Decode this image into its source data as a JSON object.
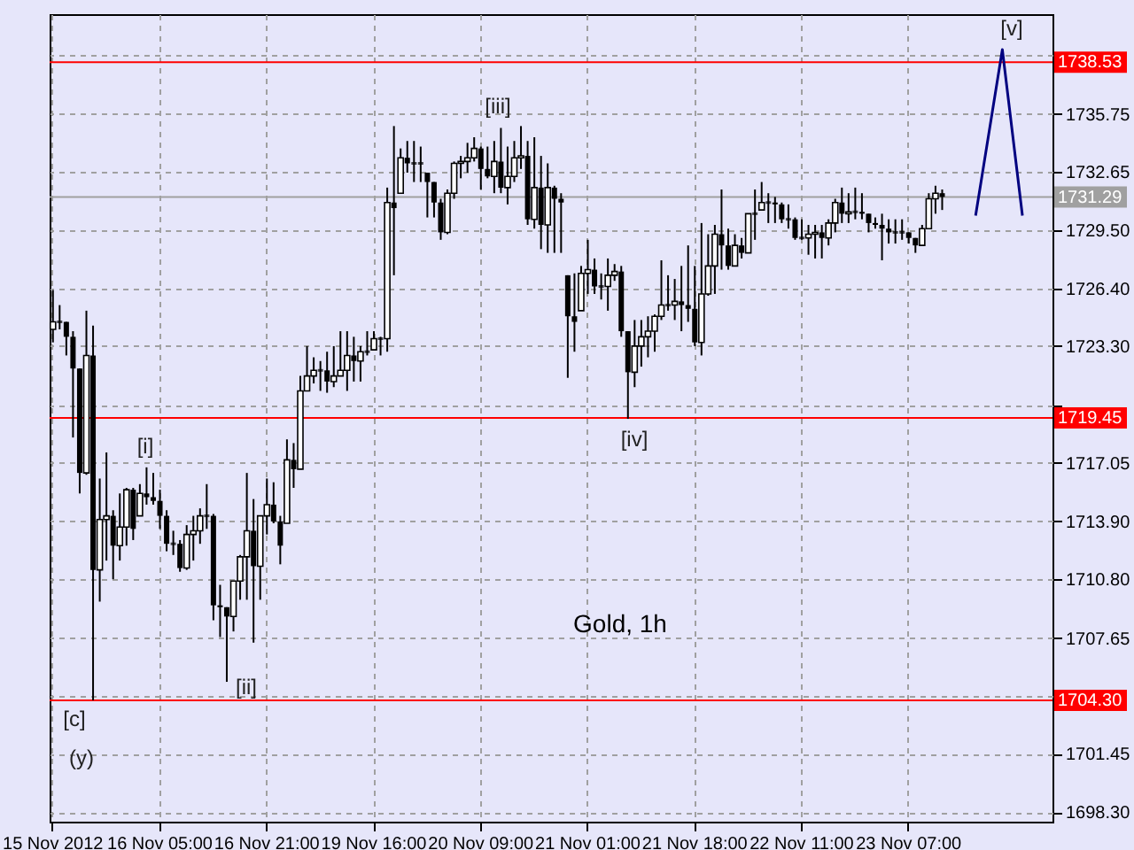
{
  "chart_data": {
    "type": "candlestick",
    "title": "Gold, 1h",
    "color": "#000000",
    "categories": [
      "15 Nov 2012",
      null,
      null,
      null,
      null,
      null,
      null,
      null,
      null,
      null,
      null,
      null,
      null,
      null,
      null,
      null,
      "16 Nov 05:00",
      null,
      null,
      null,
      null,
      null,
      null,
      null,
      null,
      null,
      null,
      null,
      null,
      null,
      null,
      null,
      "16 Nov 21:00",
      null,
      null,
      null,
      null,
      null,
      null,
      null,
      null,
      null,
      null,
      null,
      null,
      null,
      null,
      null,
      "19 Nov 16:00",
      null,
      null,
      null,
      null,
      null,
      null,
      null,
      null,
      null,
      null,
      null,
      null,
      null,
      null,
      null,
      "20 Nov 09:00",
      null,
      null,
      null,
      null,
      null,
      null,
      null,
      null,
      null,
      null,
      null,
      null,
      null,
      null,
      null,
      "21 Nov 01:00",
      null,
      null,
      null,
      null,
      null,
      null,
      null,
      null,
      null,
      null,
      null,
      null,
      null,
      null,
      null,
      "21 Nov 18:00",
      null,
      null,
      null,
      null,
      null,
      null,
      null,
      null,
      null,
      null,
      null,
      null,
      null,
      null,
      null,
      "22 Nov 11:00",
      null,
      null,
      null,
      null,
      null,
      null,
      null,
      null,
      null,
      null,
      null,
      null,
      null,
      null,
      null,
      "23 Nov 07:00",
      null,
      null,
      null,
      null,
      null,
      null,
      null,
      null,
      null,
      null,
      null,
      null,
      null,
      null,
      null,
      null,
      null,
      null,
      null,
      null,
      null
    ],
    "ohlc": [
      [
        1724.2,
        1726.3,
        1723.5,
        1724.6
      ],
      [
        1724.6,
        1725.5,
        1724.2,
        1724.6
      ],
      [
        1724.6,
        1724.6,
        1722.8,
        1723.8
      ],
      [
        1723.8,
        1724.1,
        1718.4,
        1722.1
      ],
      [
        1722.1,
        1722.1,
        1715.4,
        1716.5
      ],
      [
        1716.5,
        1725.2,
        1716.4,
        1722.8
      ],
      [
        1722.8,
        1724.4,
        1704.3,
        1711.3
      ],
      [
        1711.3,
        1716.2,
        1709.6,
        1714.0
      ],
      [
        1714.0,
        1717.6,
        1711.8,
        1714.2
      ],
      [
        1714.2,
        1714.5,
        1710.8,
        1712.6
      ],
      [
        1712.6,
        1715.4,
        1711.8,
        1713.6
      ],
      [
        1713.6,
        1715.7,
        1712.6,
        1715.6
      ],
      [
        1715.6,
        1715.7,
        1712.9,
        1713.5
      ],
      [
        1714.2,
        1715.9,
        1714.2,
        1715.4
      ],
      [
        1715.4,
        1716.8,
        1714.8,
        1715.2
      ],
      [
        1715.2,
        1716.5,
        1714.8,
        1715.0
      ],
      [
        1715.0,
        1715.6,
        1713.5,
        1714.2
      ],
      [
        1714.2,
        1714.5,
        1712.3,
        1712.7
      ],
      [
        1712.7,
        1713.4,
        1712.1,
        1712.7
      ],
      [
        1712.7,
        1712.9,
        1711.2,
        1711.4
      ],
      [
        1711.4,
        1713.7,
        1711.3,
        1713.2
      ],
      [
        1713.2,
        1714.2,
        1711.8,
        1713.4
      ],
      [
        1713.4,
        1714.6,
        1712.7,
        1714.2
      ],
      [
        1714.2,
        1715.9,
        1713.5,
        1714.2
      ],
      [
        1714.2,
        1714.3,
        1708.6,
        1709.4
      ],
      [
        1709.4,
        1710.5,
        1707.7,
        1709.3
      ],
      [
        1709.3,
        1709.3,
        1705.3,
        1708.8
      ],
      [
        1708.8,
        1710.7,
        1708.0,
        1710.7
      ],
      [
        1710.7,
        1712.1,
        1709.7,
        1712.0
      ],
      [
        1712.0,
        1716.5,
        1709.7,
        1713.4
      ],
      [
        1713.4,
        1715.1,
        1707.4,
        1711.5
      ],
      [
        1711.5,
        1714.2,
        1709.7,
        1714.2
      ],
      [
        1714.2,
        1716.2,
        1713.2,
        1714.8
      ],
      [
        1714.8,
        1716.0,
        1713.8,
        1713.9
      ],
      [
        1713.9,
        1714.2,
        1711.6,
        1712.6
      ],
      [
        1713.8,
        1718.3,
        1713.8,
        1717.2
      ],
      [
        1717.2,
        1718.1,
        1715.7,
        1716.7
      ],
      [
        1716.7,
        1721.7,
        1716.7,
        1720.9
      ],
      [
        1720.9,
        1723.3,
        1720.9,
        1721.7
      ],
      [
        1721.7,
        1722.7,
        1721.3,
        1722.0
      ],
      [
        1722.0,
        1722.5,
        1720.9,
        1722.0
      ],
      [
        1722.0,
        1723.0,
        1720.8,
        1721.4
      ],
      [
        1721.4,
        1723.3,
        1721.1,
        1721.7
      ],
      [
        1721.7,
        1724.1,
        1721.7,
        1722.0
      ],
      [
        1722.0,
        1724.1,
        1720.9,
        1722.8
      ],
      [
        1722.8,
        1723.8,
        1721.4,
        1722.5
      ],
      [
        1722.5,
        1723.3,
        1721.4,
        1723.0
      ],
      [
        1723.0,
        1724.1,
        1722.8,
        1723.0
      ],
      [
        1723.1,
        1724.1,
        1723.1,
        1723.7
      ],
      [
        1723.7,
        1723.8,
        1722.8,
        1723.7
      ],
      [
        1723.7,
        1731.8,
        1723.0,
        1731.0
      ],
      [
        1731.0,
        1735.1,
        1727.1,
        1730.7
      ],
      [
        1731.5,
        1733.9,
        1731.5,
        1733.4
      ],
      [
        1733.4,
        1734.3,
        1732.6,
        1733.1
      ],
      [
        1733.1,
        1734.3,
        1732.1,
        1733.1
      ],
      [
        1733.1,
        1734.0,
        1732.1,
        1733.1
      ],
      [
        1732.6,
        1732.6,
        1730.2,
        1732.1
      ],
      [
        1732.1,
        1732.1,
        1730.2,
        1731.0
      ],
      [
        1731.0,
        1731.2,
        1729.0,
        1729.4
      ],
      [
        1729.4,
        1731.7,
        1729.3,
        1731.5
      ],
      [
        1731.5,
        1733.2,
        1731.2,
        1733.1
      ],
      [
        1733.1,
        1733.5,
        1732.3,
        1733.2
      ],
      [
        1733.2,
        1734.2,
        1732.6,
        1733.4
      ],
      [
        1733.4,
        1734.5,
        1733.2,
        1733.9
      ],
      [
        1733.9,
        1734.0,
        1731.7,
        1732.8
      ],
      [
        1732.8,
        1734.0,
        1732.3,
        1732.4
      ],
      [
        1732.4,
        1734.3,
        1731.5,
        1733.2
      ],
      [
        1733.2,
        1735.0,
        1731.5,
        1731.8
      ],
      [
        1731.8,
        1734.0,
        1730.9,
        1732.4
      ],
      [
        1732.4,
        1734.3,
        1732.1,
        1733.4
      ],
      [
        1733.4,
        1735.1,
        1732.8,
        1733.5
      ],
      [
        1733.5,
        1734.3,
        1729.8,
        1730.1
      ],
      [
        1730.1,
        1734.5,
        1729.6,
        1731.8
      ],
      [
        1731.8,
        1733.5,
        1728.5,
        1729.8
      ],
      [
        1729.8,
        1733.1,
        1728.3,
        1731.8
      ],
      [
        1731.8,
        1731.9,
        1728.3,
        1731.2
      ],
      [
        1731.2,
        1731.5,
        1728.3,
        1731.0
      ],
      [
        1727.1,
        1727.1,
        1721.6,
        1724.9
      ],
      [
        1724.9,
        1727.2,
        1723.0,
        1724.6
      ],
      [
        1725.2,
        1727.6,
        1725.2,
        1727.2
      ],
      [
        1727.2,
        1729.0,
        1726.1,
        1727.4
      ],
      [
        1727.4,
        1728.0,
        1726.1,
        1726.5
      ],
      [
        1726.5,
        1727.2,
        1725.8,
        1726.5
      ],
      [
        1726.5,
        1728.0,
        1725.2,
        1727.1
      ],
      [
        1727.1,
        1727.7,
        1726.8,
        1727.3
      ],
      [
        1727.3,
        1727.6,
        1723.8,
        1724.1
      ],
      [
        1724.1,
        1724.1,
        1719.4,
        1721.9
      ],
      [
        1721.9,
        1724.7,
        1721.1,
        1723.3
      ],
      [
        1723.3,
        1724.7,
        1722.2,
        1723.8
      ],
      [
        1723.8,
        1724.9,
        1722.7,
        1724.1
      ],
      [
        1724.1,
        1725.0,
        1723.0,
        1724.9
      ],
      [
        1724.9,
        1727.9,
        1724.7,
        1725.5
      ],
      [
        1725.5,
        1727.1,
        1725.2,
        1725.5
      ],
      [
        1725.5,
        1726.9,
        1724.7,
        1725.7
      ],
      [
        1725.7,
        1727.6,
        1724.1,
        1725.5
      ],
      [
        1725.5,
        1728.7,
        1724.6,
        1725.3
      ],
      [
        1725.3,
        1727.6,
        1723.3,
        1723.5
      ],
      [
        1723.5,
        1729.9,
        1722.8,
        1726.1
      ],
      [
        1726.1,
        1729.3,
        1726.0,
        1727.6
      ],
      [
        1727.6,
        1729.8,
        1726.1,
        1729.3
      ],
      [
        1729.3,
        1731.7,
        1727.4,
        1728.7
      ],
      [
        1728.7,
        1729.6,
        1727.4,
        1727.6
      ],
      [
        1727.6,
        1729.3,
        1727.6,
        1728.7
      ],
      [
        1728.7,
        1729.1,
        1728.0,
        1728.3
      ],
      [
        1728.3,
        1730.4,
        1728.3,
        1730.4
      ],
      [
        1730.4,
        1731.7,
        1729.0,
        1730.4
      ],
      [
        1730.6,
        1732.1,
        1730.6,
        1731.0
      ],
      [
        1731.0,
        1731.5,
        1729.9,
        1731.0
      ],
      [
        1731.0,
        1731.3,
        1729.9,
        1730.9
      ],
      [
        1730.9,
        1731.0,
        1729.9,
        1730.1
      ],
      [
        1730.1,
        1730.9,
        1729.6,
        1730.1
      ],
      [
        1730.1,
        1730.2,
        1729.0,
        1729.1
      ],
      [
        1729.1,
        1730.1,
        1729.0,
        1729.1
      ],
      [
        1729.1,
        1729.8,
        1728.2,
        1729.3
      ],
      [
        1729.3,
        1729.8,
        1728.0,
        1729.4
      ],
      [
        1729.4,
        1729.8,
        1728.0,
        1729.1
      ],
      [
        1729.1,
        1730.1,
        1728.7,
        1729.9
      ],
      [
        1729.9,
        1731.2,
        1729.4,
        1731.0
      ],
      [
        1731.0,
        1731.8,
        1729.9,
        1730.4
      ],
      [
        1730.4,
        1731.5,
        1729.9,
        1730.5
      ],
      [
        1730.5,
        1731.8,
        1730.1,
        1730.5
      ],
      [
        1730.5,
        1731.5,
        1730.1,
        1730.4
      ],
      [
        1730.4,
        1730.4,
        1729.4,
        1729.9
      ],
      [
        1729.9,
        1730.2,
        1729.6,
        1729.8
      ],
      [
        1729.8,
        1730.4,
        1727.9,
        1729.6
      ],
      [
        1729.6,
        1730.1,
        1728.8,
        1729.4
      ],
      [
        1729.4,
        1730.1,
        1728.8,
        1729.4
      ],
      [
        1729.4,
        1730.1,
        1729.0,
        1729.4
      ],
      [
        1729.4,
        1729.4,
        1728.8,
        1729.1
      ],
      [
        1729.1,
        1729.1,
        1728.3,
        1728.7
      ],
      [
        1728.7,
        1729.8,
        1728.7,
        1729.6
      ],
      [
        1729.6,
        1731.5,
        1729.6,
        1731.2
      ],
      [
        1731.2,
        1731.9,
        1730.4,
        1731.5
      ],
      [
        1731.5,
        1731.7,
        1730.6,
        1731.3
      ],
      null,
      null,
      null,
      null,
      null,
      null,
      null,
      null,
      null,
      null,
      null,
      null,
      null,
      null,
      null,
      null
    ],
    "series": [
      {
        "type": "line",
        "color": "#000080",
        "values": [
          null,
          null,
          null,
          null,
          null,
          null,
          null,
          null,
          null,
          null,
          null,
          null,
          null,
          null,
          null,
          null,
          null,
          null,
          null,
          null,
          null,
          null,
          null,
          null,
          null,
          null,
          null,
          null,
          null,
          null,
          null,
          null,
          null,
          null,
          null,
          null,
          null,
          null,
          null,
          null,
          null,
          null,
          null,
          null,
          null,
          null,
          null,
          null,
          null,
          null,
          null,
          null,
          null,
          null,
          null,
          null,
          null,
          null,
          null,
          null,
          null,
          null,
          null,
          null,
          null,
          null,
          null,
          null,
          null,
          null,
          null,
          null,
          null,
          null,
          null,
          null,
          null,
          null,
          null,
          null,
          null,
          null,
          null,
          null,
          null,
          null,
          null,
          null,
          null,
          null,
          null,
          null,
          null,
          null,
          null,
          null,
          null,
          null,
          null,
          null,
          null,
          null,
          null,
          null,
          null,
          null,
          null,
          null,
          null,
          null,
          null,
          null,
          null,
          null,
          null,
          null,
          null,
          null,
          null,
          null,
          null,
          null,
          null,
          null,
          null,
          null,
          null,
          null,
          null,
          null,
          null,
          null,
          null,
          null,
          null,
          null,
          null,
          null,
          1730.3,
          null,
          null,
          null,
          1739.2,
          null,
          null,
          1730.3,
          null,
          null,
          null,
          null
        ]
      }
    ],
    "ylim": [
      1697.8,
      1741.1
    ],
    "yticks": [
      {
        "value": 1698.3,
        "label": "1698.30"
      },
      {
        "value": 1701.45,
        "label": "1701.45"
      },
      {
        "value": 1704.5,
        "label": null
      },
      {
        "value": 1707.65,
        "label": "1707.65"
      },
      {
        "value": 1710.8,
        "label": "1710.80"
      },
      {
        "value": 1713.9,
        "label": "1713.90"
      },
      {
        "value": 1717.05,
        "label": "1717.05"
      },
      {
        "value": 1720.15,
        "label": null
      },
      {
        "value": 1723.3,
        "label": "1723.30"
      },
      {
        "value": 1726.4,
        "label": "1726.40"
      },
      {
        "value": 1729.5,
        "label": "1729.50"
      },
      {
        "value": 1732.65,
        "label": "1732.65"
      },
      {
        "value": 1735.75,
        "label": "1735.75"
      },
      {
        "value": 1738.9,
        "label": null
      }
    ],
    "grid": true,
    "ref_lines": [
      {
        "axis": "y",
        "value": 1738.53,
        "label": "1738.53",
        "color": "#ff0000"
      },
      {
        "axis": "y",
        "value": 1719.45,
        "label": "1719.45",
        "color": "#ff0000"
      },
      {
        "axis": "y",
        "value": 1704.3,
        "label": "1704.30",
        "color": "#ff0000"
      },
      {
        "axis": "y",
        "value": 1731.29,
        "label": "1731.29",
        "color": "#a0a0a0"
      }
    ],
    "annotations": [
      "[i]",
      "[ii]",
      "[iii]",
      "[iv]",
      "[v]",
      "[c]",
      "(y)"
    ]
  }
}
